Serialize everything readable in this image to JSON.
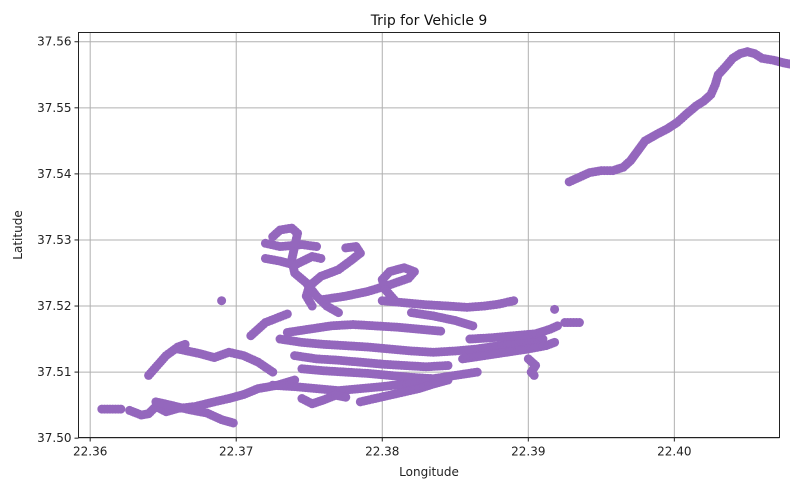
{
  "chart_data": {
    "type": "scatter",
    "title": "Trip for Vehicle 9",
    "xlabel": "Longitude",
    "ylabel": "Latitude",
    "xlim": [
      22.3592,
      22.4072
    ],
    "ylim": [
      37.5001,
      37.5614
    ],
    "xticks": [
      22.36,
      22.37,
      22.38,
      22.39,
      22.4
    ],
    "xtick_labels": [
      "22.36",
      "22.37",
      "22.38",
      "22.39",
      "22.40"
    ],
    "yticks": [
      37.5,
      37.51,
      37.52,
      37.53,
      37.54,
      37.55,
      37.56
    ],
    "ytick_labels": [
      "37.50",
      "37.51",
      "37.52",
      "37.53",
      "37.54",
      "37.55",
      "37.56"
    ],
    "grid": true,
    "marker_color": "#9467bd",
    "tracks": [
      [
        [
          22.3608,
          37.5044
        ],
        [
          22.3621,
          37.5044
        ]
      ],
      [
        [
          22.3627,
          37.5042
        ],
        [
          22.3635,
          37.5035
        ],
        [
          22.364,
          37.5037
        ],
        [
          22.3645,
          37.5048
        ],
        [
          22.3652,
          37.504
        ],
        [
          22.366,
          37.5045
        ],
        [
          22.3672,
          37.5048
        ],
        [
          22.3685,
          37.5055
        ],
        [
          22.3695,
          37.506
        ],
        [
          22.3705,
          37.5066
        ],
        [
          22.3715,
          37.5075
        ],
        [
          22.3728,
          37.508
        ],
        [
          22.374,
          37.5088
        ]
      ],
      [
        [
          22.3645,
          37.5055
        ],
        [
          22.3655,
          37.505
        ],
        [
          22.3668,
          37.5043
        ],
        [
          22.368,
          37.5038
        ],
        [
          22.369,
          37.5028
        ],
        [
          22.3698,
          37.5023
        ]
      ],
      [
        [
          22.364,
          37.5095
        ],
        [
          22.3646,
          37.511
        ],
        [
          22.3652,
          37.5125
        ],
        [
          22.366,
          37.5138
        ],
        [
          22.3665,
          37.5142
        ]
      ],
      [
        [
          22.366,
          37.5135
        ],
        [
          22.3675,
          37.5128
        ],
        [
          22.3685,
          37.5122
        ],
        [
          22.3695,
          37.513
        ],
        [
          22.3705,
          37.5125
        ],
        [
          22.3715,
          37.5115
        ],
        [
          22.3725,
          37.51
        ]
      ],
      [
        [
          22.369,
          37.5208
        ]
      ],
      [
        [
          22.371,
          37.5155
        ],
        [
          22.372,
          37.5175
        ],
        [
          22.3735,
          37.5188
        ]
      ],
      [
        [
          22.372,
          37.5295
        ],
        [
          22.373,
          37.529
        ],
        [
          22.3745,
          37.5293
        ],
        [
          22.3755,
          37.529
        ]
      ],
      [
        [
          22.3725,
          37.5305
        ],
        [
          22.373,
          37.5315
        ],
        [
          22.3738,
          37.5318
        ],
        [
          22.3742,
          37.531
        ],
        [
          22.374,
          37.529
        ],
        [
          22.3738,
          37.527
        ],
        [
          22.374,
          37.525
        ],
        [
          22.3748,
          37.5235
        ],
        [
          22.3755,
          37.5215
        ],
        [
          22.3762,
          37.52
        ],
        [
          22.377,
          37.519
        ]
      ],
      [
        [
          22.372,
          37.5272
        ],
        [
          22.373,
          37.5268
        ],
        [
          22.374,
          37.5262
        ],
        [
          22.3752,
          37.5275
        ],
        [
          22.3758,
          37.5272
        ]
      ],
      [
        [
          22.3775,
          37.5288
        ],
        [
          22.3782,
          37.529
        ],
        [
          22.3785,
          37.528
        ],
        [
          22.3778,
          37.5268
        ],
        [
          22.377,
          37.5255
        ],
        [
          22.3758,
          37.5245
        ],
        [
          22.375,
          37.523
        ],
        [
          22.3748,
          37.5215
        ],
        [
          22.3752,
          37.52
        ]
      ],
      [
        [
          22.376,
          37.521
        ],
        [
          22.3775,
          37.5215
        ],
        [
          22.379,
          37.5222
        ],
        [
          22.3805,
          37.5232
        ],
        [
          22.3818,
          37.5242
        ],
        [
          22.3822,
          37.5252
        ],
        [
          22.3815,
          37.5258
        ],
        [
          22.3805,
          37.5252
        ],
        [
          22.38,
          37.524
        ],
        [
          22.3802,
          37.5225
        ],
        [
          22.3808,
          37.521
        ]
      ],
      [
        [
          22.38,
          37.5208
        ],
        [
          22.3815,
          37.5205
        ],
        [
          22.383,
          37.5202
        ],
        [
          22.3845,
          37.52
        ],
        [
          22.3858,
          37.5198
        ],
        [
          22.387,
          37.52
        ],
        [
          22.388,
          37.5203
        ],
        [
          22.389,
          37.5208
        ]
      ],
      [
        [
          22.382,
          37.519
        ],
        [
          22.3835,
          37.5185
        ],
        [
          22.385,
          37.5178
        ],
        [
          22.3862,
          37.517
        ]
      ],
      [
        [
          22.3735,
          37.516
        ],
        [
          22.375,
          37.5165
        ],
        [
          22.3765,
          37.517
        ],
        [
          22.378,
          37.5172
        ],
        [
          22.3795,
          37.517
        ],
        [
          22.381,
          37.5168
        ],
        [
          22.3825,
          37.5165
        ],
        [
          22.384,
          37.5162
        ]
      ],
      [
        [
          22.373,
          37.515
        ],
        [
          22.3745,
          37.5145
        ],
        [
          22.376,
          37.5142
        ],
        [
          22.3775,
          37.514
        ],
        [
          22.379,
          37.5138
        ],
        [
          22.3805,
          37.5135
        ],
        [
          22.382,
          37.5132
        ],
        [
          22.3835,
          37.513
        ],
        [
          22.385,
          37.5132
        ],
        [
          22.3865,
          37.5135
        ],
        [
          22.388,
          37.514
        ],
        [
          22.3895,
          37.5145
        ],
        [
          22.391,
          37.515
        ]
      ],
      [
        [
          22.374,
          37.5125
        ],
        [
          22.3755,
          37.512
        ],
        [
          22.377,
          37.5118
        ],
        [
          22.3785,
          37.5115
        ],
        [
          22.38,
          37.5112
        ],
        [
          22.3815,
          37.511
        ],
        [
          22.383,
          37.5108
        ],
        [
          22.3845,
          37.511
        ]
      ],
      [
        [
          22.3745,
          37.5105
        ],
        [
          22.376,
          37.5102
        ],
        [
          22.3775,
          37.51
        ],
        [
          22.379,
          37.5098
        ],
        [
          22.3805,
          37.5095
        ],
        [
          22.382,
          37.5092
        ],
        [
          22.3835,
          37.509
        ],
        [
          22.385,
          37.5095
        ],
        [
          22.3865,
          37.51
        ]
      ],
      [
        [
          22.3725,
          37.508
        ],
        [
          22.374,
          37.5078
        ],
        [
          22.3755,
          37.5075
        ],
        [
          22.377,
          37.5072
        ],
        [
          22.3785,
          37.5075
        ],
        [
          22.38,
          37.5078
        ],
        [
          22.3815,
          37.5082
        ],
        [
          22.383,
          37.5085
        ]
      ],
      [
        [
          22.3745,
          37.506
        ],
        [
          22.3752,
          37.5052
        ],
        [
          22.376,
          37.5058
        ],
        [
          22.3768,
          37.5065
        ],
        [
          22.3775,
          37.5062
        ]
      ],
      [
        [
          22.3785,
          37.5055
        ],
        [
          22.3795,
          37.506
        ],
        [
          22.3805,
          37.5065
        ],
        [
          22.3815,
          37.507
        ],
        [
          22.3825,
          37.5075
        ],
        [
          22.3835,
          37.5082
        ],
        [
          22.3845,
          37.5088
        ]
      ],
      [
        [
          22.3855,
          37.512
        ],
        [
          22.387,
          37.5125
        ],
        [
          22.3885,
          37.513
        ],
        [
          22.39,
          37.5135
        ],
        [
          22.3912,
          37.514
        ],
        [
          22.3918,
          37.5145
        ]
      ],
      [
        [
          22.386,
          37.515
        ],
        [
          22.3875,
          37.5152
        ],
        [
          22.389,
          37.5155
        ],
        [
          22.3905,
          37.5158
        ],
        [
          22.3915,
          37.5165
        ],
        [
          22.392,
          37.517
        ]
      ],
      [
        [
          22.39,
          37.512
        ],
        [
          22.3905,
          37.511
        ],
        [
          22.3902,
          37.51
        ],
        [
          22.3904,
          37.5095
        ]
      ],
      [
        [
          22.3918,
          37.5195
        ]
      ],
      [
        [
          22.3925,
          37.5175
        ],
        [
          22.3935,
          37.5175
        ]
      ],
      [
        [
          22.3928,
          37.5388
        ],
        [
          22.3935,
          37.5395
        ],
        [
          22.3942,
          37.5402
        ],
        [
          22.395,
          37.5405
        ],
        [
          22.3958,
          37.5405
        ],
        [
          22.3965,
          37.541
        ],
        [
          22.397,
          37.542
        ],
        [
          22.3975,
          37.5435
        ],
        [
          22.398,
          37.545
        ],
        [
          22.3988,
          37.546
        ],
        [
          22.3995,
          37.5468
        ],
        [
          22.4002,
          37.5478
        ],
        [
          22.4008,
          37.549
        ],
        [
          22.4015,
          37.5503
        ],
        [
          22.402,
          37.551
        ],
        [
          22.4025,
          37.552
        ],
        [
          22.4028,
          37.5535
        ],
        [
          22.403,
          37.555
        ],
        [
          22.4035,
          37.5562
        ],
        [
          22.404,
          37.5575
        ],
        [
          22.4045,
          37.5582
        ],
        [
          22.405,
          37.5585
        ],
        [
          22.4055,
          37.5582
        ],
        [
          22.406,
          37.5575
        ],
        [
          22.4068,
          37.5572
        ],
        [
          22.4075,
          37.5568
        ],
        [
          22.4082,
          37.5565
        ],
        [
          22.4088,
          37.5563
        ],
        [
          22.409,
          37.556
        ]
      ]
    ]
  }
}
